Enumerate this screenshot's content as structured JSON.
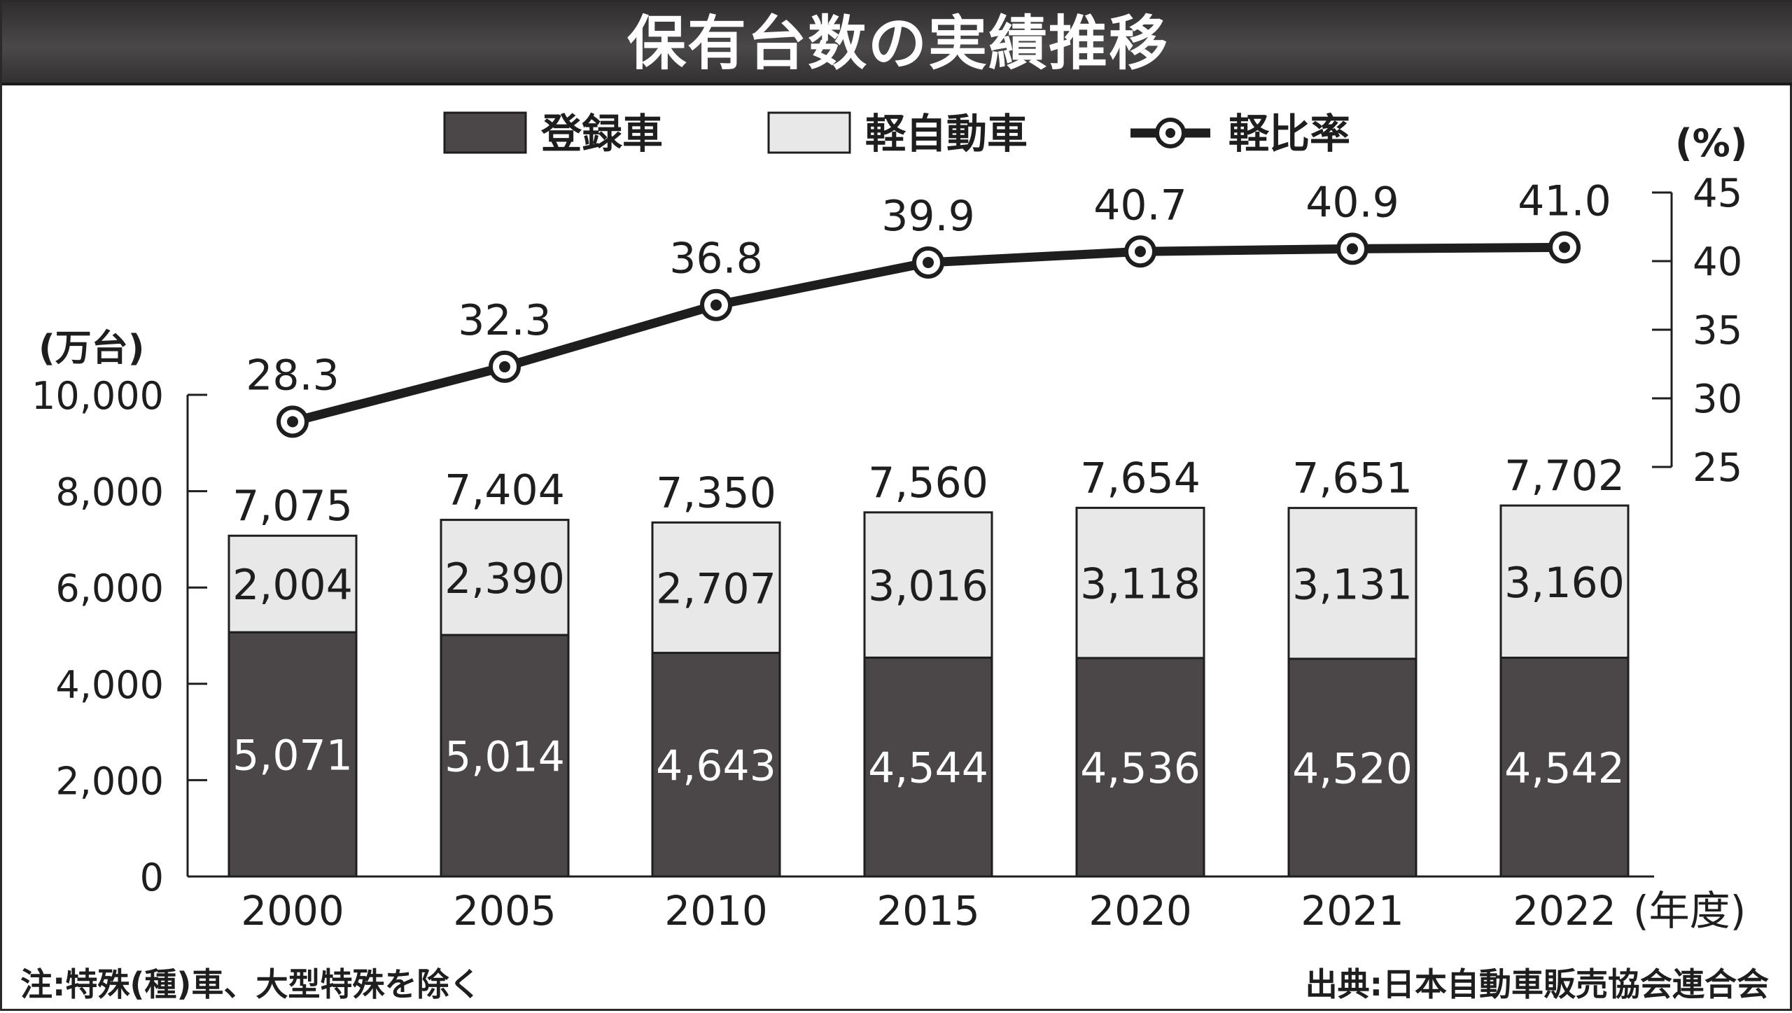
{
  "title": "保有台数の実績推移",
  "note": "注:特殊(種)車、大型特殊を除く",
  "source": "出典:日本自動車販売協会連合会",
  "colors": {
    "registered": "#4b4748",
    "kei": "#e8e8e8",
    "line": "#1e1e1e",
    "title_bar": "#3c3a3b"
  },
  "chart_data": {
    "type": "bar+line",
    "categories": [
      "2000",
      "2005",
      "2010",
      "2015",
      "2020",
      "2021",
      "2022"
    ],
    "x_unit": "(年度)",
    "legend": {
      "placement": "top",
      "items": [
        {
          "label": "登録車",
          "kind": "bar-dark"
        },
        {
          "label": "軽自動車",
          "kind": "bar-light"
        },
        {
          "label": "軽比率",
          "kind": "line-marker"
        }
      ]
    },
    "left_axis": {
      "unit": "(万台)",
      "ylim": [
        0,
        10000
      ],
      "ticks": [
        0,
        2000,
        4000,
        6000,
        8000,
        10000
      ],
      "tick_labels": [
        "0",
        "2,000",
        "4,000",
        "6,000",
        "8,000",
        "10,000"
      ]
    },
    "right_axis": {
      "unit": "(%)",
      "ylim": [
        25,
        45
      ],
      "ticks": [
        25,
        30,
        35,
        40,
        45
      ],
      "tick_labels": [
        "25",
        "30",
        "35",
        "40",
        "45"
      ]
    },
    "series": [
      {
        "name": "登録車",
        "type": "bar",
        "stack": "total",
        "axis": "left",
        "values": [
          5071,
          5014,
          4643,
          4544,
          4536,
          4520,
          4542
        ],
        "labels": [
          "5,071",
          "5,014",
          "4,643",
          "4,544",
          "4,536",
          "4,520",
          "4,542"
        ]
      },
      {
        "name": "軽自動車",
        "type": "bar",
        "stack": "total",
        "axis": "left",
        "values": [
          2004,
          2390,
          2707,
          3016,
          3118,
          3131,
          3160
        ],
        "labels": [
          "2,004",
          "2,390",
          "2,707",
          "3,016",
          "3,118",
          "3,131",
          "3,160"
        ]
      },
      {
        "name": "軽比率",
        "type": "line",
        "axis": "right",
        "values": [
          28.3,
          32.3,
          36.8,
          39.9,
          40.7,
          40.9,
          41.0
        ],
        "labels": [
          "28.3",
          "32.3",
          "36.8",
          "39.9",
          "40.7",
          "40.9",
          "41.0"
        ]
      }
    ],
    "totals": {
      "values": [
        7075,
        7404,
        7350,
        7560,
        7654,
        7651,
        7702
      ],
      "labels": [
        "7,075",
        "7,404",
        "7,350",
        "7,560",
        "7,654",
        "7,651",
        "7,702"
      ]
    },
    "grid": false
  }
}
